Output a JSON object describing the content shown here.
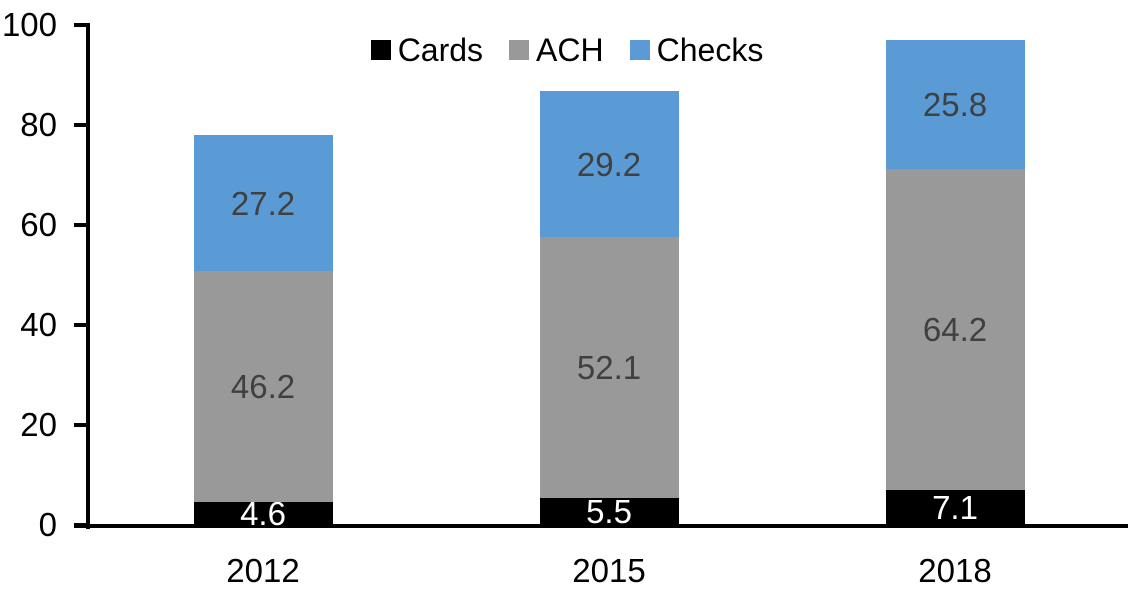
{
  "chart_data": {
    "type": "bar",
    "stacked": true,
    "title": "",
    "categories": [
      "2012",
      "2015",
      "2018"
    ],
    "series": [
      {
        "name": "Cards",
        "color": "#000000",
        "label_color": "#FFFFFF",
        "values": [
          4.6,
          5.5,
          7.1
        ]
      },
      {
        "name": "ACH",
        "color": "#999999",
        "label_color": "#404040",
        "values": [
          46.2,
          52.1,
          64.2
        ]
      },
      {
        "name": "Checks",
        "color": "#5B9BD5",
        "label_color": "#404040",
        "values": [
          27.2,
          29.2,
          25.8
        ]
      }
    ],
    "totals": [
      78.0,
      86.8,
      97.1
    ],
    "y_axis": {
      "min": 0,
      "max": 100,
      "ticks": [
        0,
        20,
        40,
        60,
        80,
        100
      ]
    },
    "x_axis": {
      "labels": [
        "2012",
        "2015",
        "2018"
      ]
    },
    "legend": {
      "position": "top",
      "entries": [
        "Cards",
        "ACH",
        "Checks"
      ]
    },
    "grid": false,
    "background": "#FFFFFF",
    "axis_color": "#000000"
  }
}
